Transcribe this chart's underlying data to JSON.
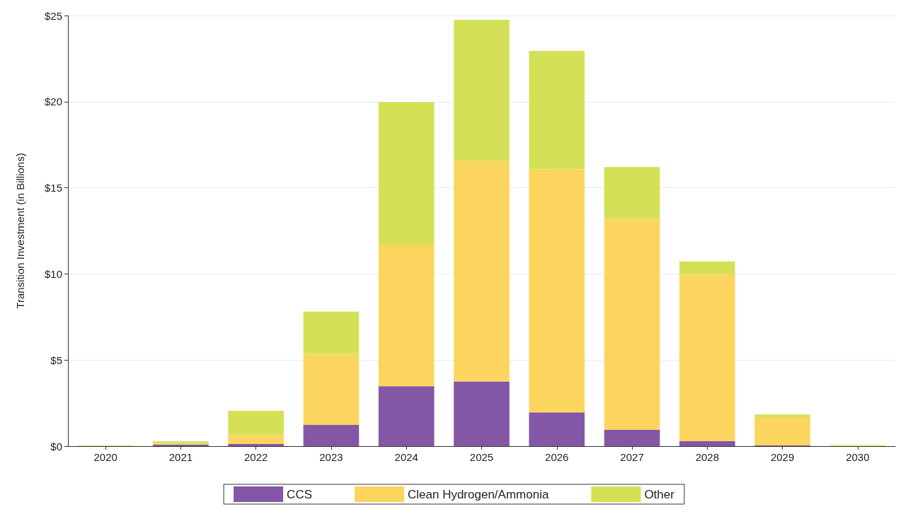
{
  "chart_data": {
    "type": "bar",
    "stacked": true,
    "ylabel": "Transition Investment (in Billions)",
    "categories": [
      "2020",
      "2021",
      "2022",
      "2023",
      "2024",
      "2025",
      "2026",
      "2027",
      "2028",
      "2029",
      "2030"
    ],
    "series": [
      {
        "name": "CCS",
        "color": "#8456a6",
        "values": [
          null,
          0.08,
          0.12,
          1.23,
          3.48,
          3.76,
          1.96,
          0.94,
          0.29,
          0.04,
          null
        ]
      },
      {
        "name": "Clean Hydrogen/Ammonia",
        "color": "#fcd55f",
        "values": [
          0.02,
          0.05,
          0.53,
          4.13,
          8.22,
          12.81,
          14.12,
          12.26,
          9.71,
          1.64,
          0.03
        ]
      },
      {
        "name": "Other",
        "color": "#d4e157",
        "values": [
          0.03,
          0.15,
          1.4,
          2.45,
          8.27,
          8.18,
          6.87,
          3.0,
          0.72,
          0.16,
          0.03
        ]
      }
    ],
    "ylim": [
      0,
      25
    ],
    "yticks": [
      {
        "value": 0,
        "label": "$0"
      },
      {
        "value": 5,
        "label": "$5"
      },
      {
        "value": 10,
        "label": "$10"
      },
      {
        "value": 15,
        "label": "$15"
      },
      {
        "value": 20,
        "label": "$20"
      },
      {
        "value": 25,
        "label": "$25"
      }
    ],
    "grid": "y",
    "legend": "bottom"
  }
}
